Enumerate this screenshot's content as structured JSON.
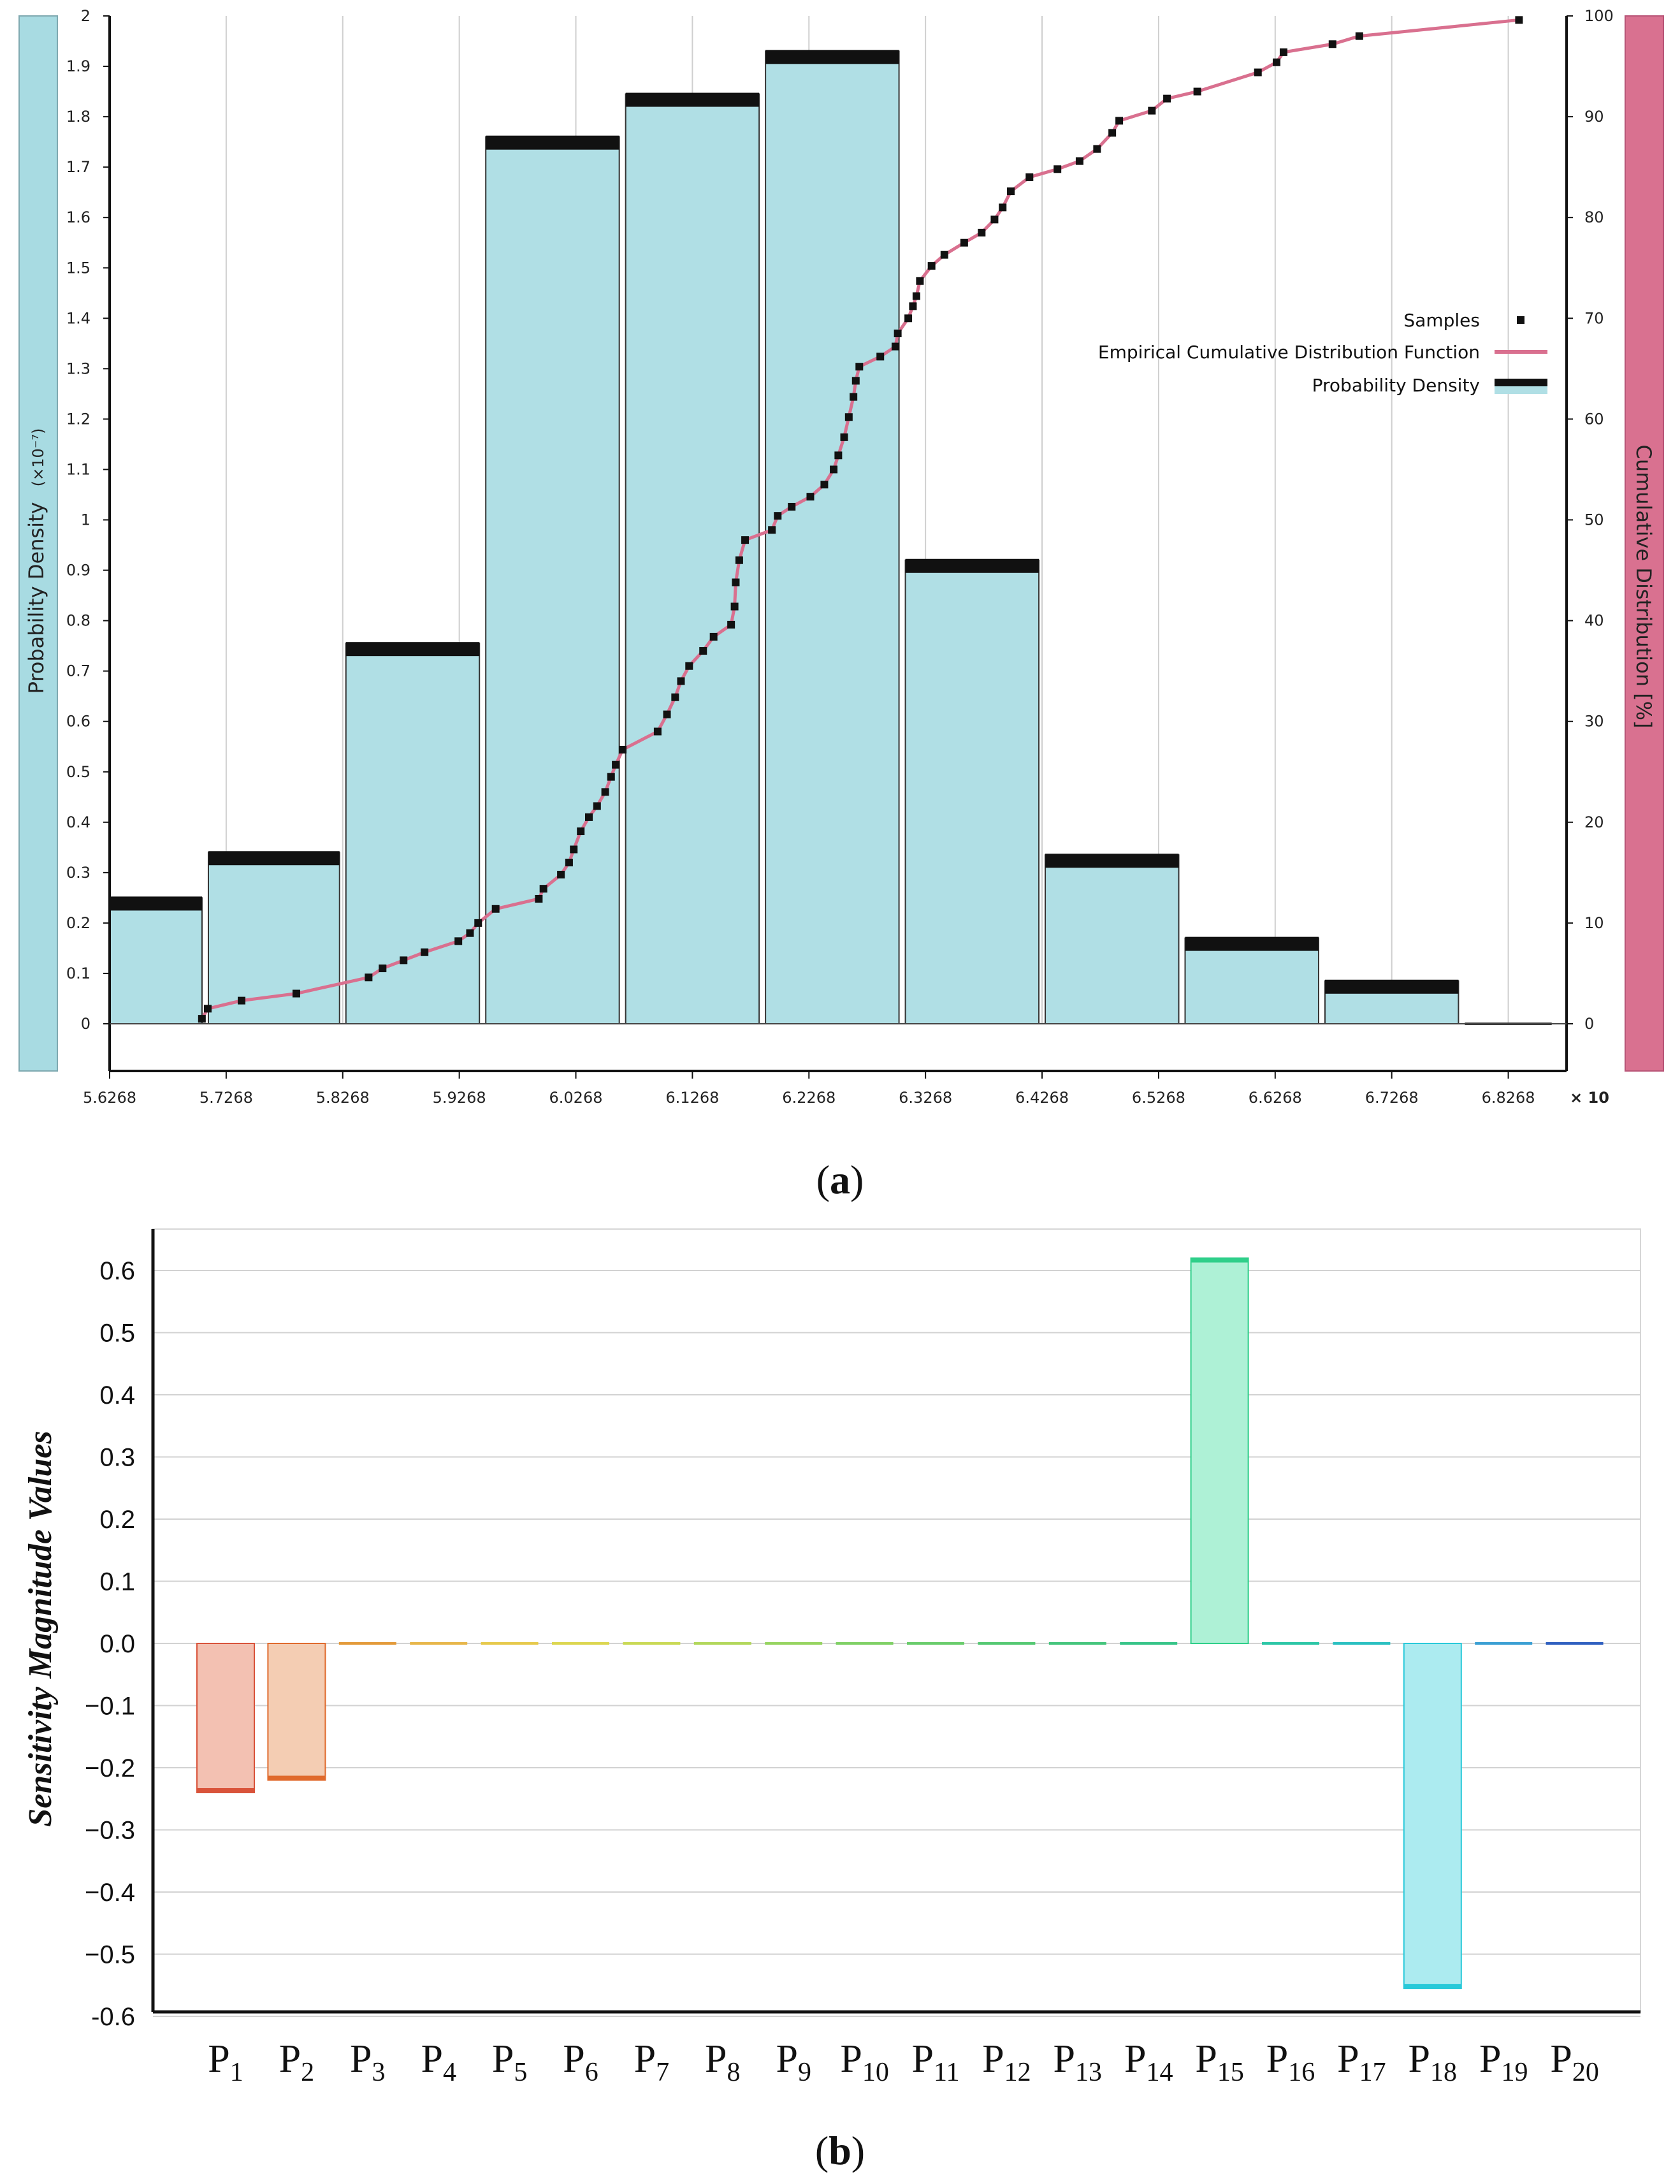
{
  "panels": {
    "a": {
      "caption_open": "(",
      "caption_letter": "a",
      "caption_close": ")"
    },
    "b": {
      "caption_open": "(",
      "caption_letter": "b",
      "caption_close": ")"
    }
  },
  "chart_data": [
    {
      "id": "a",
      "type": "bar",
      "title": "",
      "xlabel": "",
      "x_multiplier": "× 10",
      "ylabel_left": "Probability Density",
      "ylabel_left_unit": "(×10⁻⁷)",
      "ylabel_right": "Cumulative Distribution [%]",
      "x_ticks": [
        5.6268,
        5.7268,
        5.8268,
        5.9268,
        6.0268,
        6.1268,
        6.2268,
        6.3268,
        6.4268,
        6.5268,
        6.6268,
        6.7268,
        6.8268
      ],
      "x_tick_labels": [
        "5.6268",
        "5.7268",
        "5.8268",
        "5.9268",
        "6.0268",
        "6.1268",
        "6.2268",
        "6.3268",
        "6.4268",
        "6.5268",
        "6.6268",
        "6.7268",
        "6.8268"
      ],
      "xlim": [
        5.6268,
        6.8768
      ],
      "y_left_ticks": [
        "0",
        "0.1",
        "0.2",
        "0.3",
        "0.4",
        "0.5",
        "0.6",
        "0.7",
        "0.8",
        "0.9",
        "1",
        "1.1",
        "1.2",
        "1.3",
        "1.4",
        "1.5",
        "1.6",
        "1.7",
        "1.8",
        "1.9",
        "2"
      ],
      "ylim_left": [
        0,
        2
      ],
      "y_right_ticks": [
        "0",
        "10",
        "20",
        "30",
        "40",
        "50",
        "60",
        "70",
        "80",
        "90",
        "100"
      ],
      "ylim_right": [
        0,
        100
      ],
      "histogram": {
        "bin_edges": [
          5.6268,
          5.7088,
          5.8268,
          5.9468,
          6.0668,
          6.1868,
          6.3068,
          6.4268,
          6.5468,
          6.6668,
          6.7868,
          6.8668
        ],
        "density": [
          0.25,
          0.34,
          0.755,
          1.76,
          1.845,
          1.93,
          0.92,
          0.335,
          0.17,
          0.085,
          0.005
        ]
      },
      "ecdf_samples": [
        [
          5.706,
          0.5
        ],
        [
          5.711,
          1.5
        ],
        [
          5.74,
          2.3
        ],
        [
          5.787,
          3.0
        ],
        [
          5.849,
          4.6
        ],
        [
          5.861,
          5.5
        ],
        [
          5.879,
          6.3
        ],
        [
          5.897,
          7.1
        ],
        [
          5.926,
          8.2
        ],
        [
          5.936,
          9.0
        ],
        [
          5.943,
          10.0
        ],
        [
          5.958,
          11.4
        ],
        [
          5.995,
          12.4
        ],
        [
          5.999,
          13.4
        ],
        [
          6.014,
          14.8
        ],
        [
          6.021,
          16.0
        ],
        [
          6.025,
          17.3
        ],
        [
          6.031,
          19.1
        ],
        [
          6.038,
          20.5
        ],
        [
          6.045,
          21.6
        ],
        [
          6.052,
          23.0
        ],
        [
          6.057,
          24.5
        ],
        [
          6.061,
          25.7
        ],
        [
          6.067,
          27.2
        ],
        [
          6.097,
          29.0
        ],
        [
          6.105,
          30.7
        ],
        [
          6.112,
          32.4
        ],
        [
          6.117,
          34.0
        ],
        [
          6.124,
          35.5
        ],
        [
          6.136,
          37.0
        ],
        [
          6.145,
          38.4
        ],
        [
          6.16,
          39.6
        ],
        [
          6.163,
          41.4
        ],
        [
          6.164,
          43.8
        ],
        [
          6.167,
          46.0
        ],
        [
          6.172,
          48.0
        ],
        [
          6.195,
          49.0
        ],
        [
          6.2,
          50.4
        ],
        [
          6.212,
          51.3
        ],
        [
          6.228,
          52.3
        ],
        [
          6.24,
          53.5
        ],
        [
          6.248,
          55.0
        ],
        [
          6.252,
          56.4
        ],
        [
          6.257,
          58.2
        ],
        [
          6.261,
          60.2
        ],
        [
          6.265,
          62.2
        ],
        [
          6.267,
          63.8
        ],
        [
          6.27,
          65.2
        ],
        [
          6.288,
          66.2
        ],
        [
          6.301,
          67.2
        ],
        [
          6.303,
          68.5
        ],
        [
          6.312,
          70.0
        ],
        [
          6.316,
          71.2
        ],
        [
          6.319,
          72.2
        ],
        [
          6.322,
          73.7
        ],
        [
          6.332,
          75.2
        ],
        [
          6.343,
          76.3
        ],
        [
          6.36,
          77.5
        ],
        [
          6.375,
          78.5
        ],
        [
          6.386,
          79.8
        ],
        [
          6.393,
          81.0
        ],
        [
          6.4,
          82.6
        ],
        [
          6.416,
          84.0
        ],
        [
          6.44,
          84.8
        ],
        [
          6.459,
          85.6
        ],
        [
          6.474,
          86.8
        ],
        [
          6.487,
          88.4
        ],
        [
          6.493,
          89.6
        ],
        [
          6.521,
          90.6
        ],
        [
          6.534,
          91.8
        ],
        [
          6.56,
          92.5
        ],
        [
          6.612,
          94.4
        ],
        [
          6.628,
          95.4
        ],
        [
          6.634,
          96.4
        ],
        [
          6.676,
          97.2
        ],
        [
          6.699,
          98.0
        ],
        [
          6.836,
          99.6
        ]
      ],
      "legend": {
        "position": "top-right",
        "items": [
          {
            "label": "Samples",
            "marker": "square",
            "color": "#111111"
          },
          {
            "label": "Empirical Cumulative Distribution Function",
            "marker": "line",
            "color": "#d9708f"
          },
          {
            "label": "Probability Density",
            "marker": "bar",
            "color": "#b0dfe5"
          }
        ]
      },
      "colors": {
        "bar_fill": "#b0dfe5",
        "bar_top": "#111111",
        "ecdf": "#d9708f",
        "left_axis_band": "#a8dbe2",
        "right_axis_band": "#d97190"
      }
    },
    {
      "id": "b",
      "type": "bar",
      "title": "",
      "xlabel": "",
      "ylabel": "Sensitivity Magnitude Values",
      "ylim": [
        -0.6,
        0.6
      ],
      "y_ticks": [
        0.6,
        0.5,
        0.4,
        0.3,
        0.2,
        0.1,
        0.0,
        -0.1,
        -0.2,
        -0.3,
        -0.4,
        -0.5,
        -0.6
      ],
      "y_tick_labels": [
        "0.6",
        "0.5",
        "0.4",
        "0.3",
        "0.2",
        "0.1",
        "0.0",
        "−0.1",
        "−0.2",
        "−0.3",
        "−0.4",
        "−0.5",
        "-0.6"
      ],
      "categories": [
        {
          "base": "P",
          "sub": "1"
        },
        {
          "base": "P",
          "sub": "2"
        },
        {
          "base": "P",
          "sub": "3"
        },
        {
          "base": "P",
          "sub": "4"
        },
        {
          "base": "P",
          "sub": "5"
        },
        {
          "base": "P",
          "sub": "6"
        },
        {
          "base": "P",
          "sub": "7"
        },
        {
          "base": "P",
          "sub": "8"
        },
        {
          "base": "P",
          "sub": "9"
        },
        {
          "base": "P",
          "sub": "10"
        },
        {
          "base": "P",
          "sub": "11"
        },
        {
          "base": "P",
          "sub": "12"
        },
        {
          "base": "P",
          "sub": "13"
        },
        {
          "base": "P",
          "sub": "14"
        },
        {
          "base": "P",
          "sub": "15"
        },
        {
          "base": "P",
          "sub": "16"
        },
        {
          "base": "P",
          "sub": "17"
        },
        {
          "base": "P",
          "sub": "18"
        },
        {
          "base": "P",
          "sub": "19"
        },
        {
          "base": "P",
          "sub": "20"
        }
      ],
      "values": [
        -0.24,
        -0.22,
        0.0,
        0.0,
        0.0,
        0.0,
        0.0,
        0.0,
        0.0,
        0.0,
        0.0,
        0.0,
        0.0,
        0.0,
        0.62,
        0.0,
        0.0,
        -0.555,
        0.0,
        0.0
      ],
      "edge_colors": [
        "#d9533a",
        "#e06a2c",
        "#e39a3a",
        "#e7b64a",
        "#e6c94c",
        "#dcd650",
        "#c9d955",
        "#b2d75b",
        "#96d460",
        "#7fd065",
        "#69cc6b",
        "#54c872",
        "#44c57c",
        "#36c488",
        "#2fcf8a",
        "#2cc6a6",
        "#2ac0c1",
        "#28c9d9",
        "#3a9fd3",
        "#2f5fc0"
      ],
      "fill_colors": [
        "#f3c1b2",
        "#f4cdb3",
        "#f6ddbb",
        "#f7e6c0",
        "#f6ecc1",
        "#f1efc2",
        "#e9f0c4",
        "#dff0c7",
        "#d3efca",
        "#c9edcc",
        "#bfecce",
        "#b5ead2",
        "#aeeed5",
        "#aaf0d8",
        "#aef1d6",
        "#aeece3",
        "#abeaea",
        "#acebf0",
        "#b4d7ef",
        "#b3c3ea"
      ]
    }
  ]
}
